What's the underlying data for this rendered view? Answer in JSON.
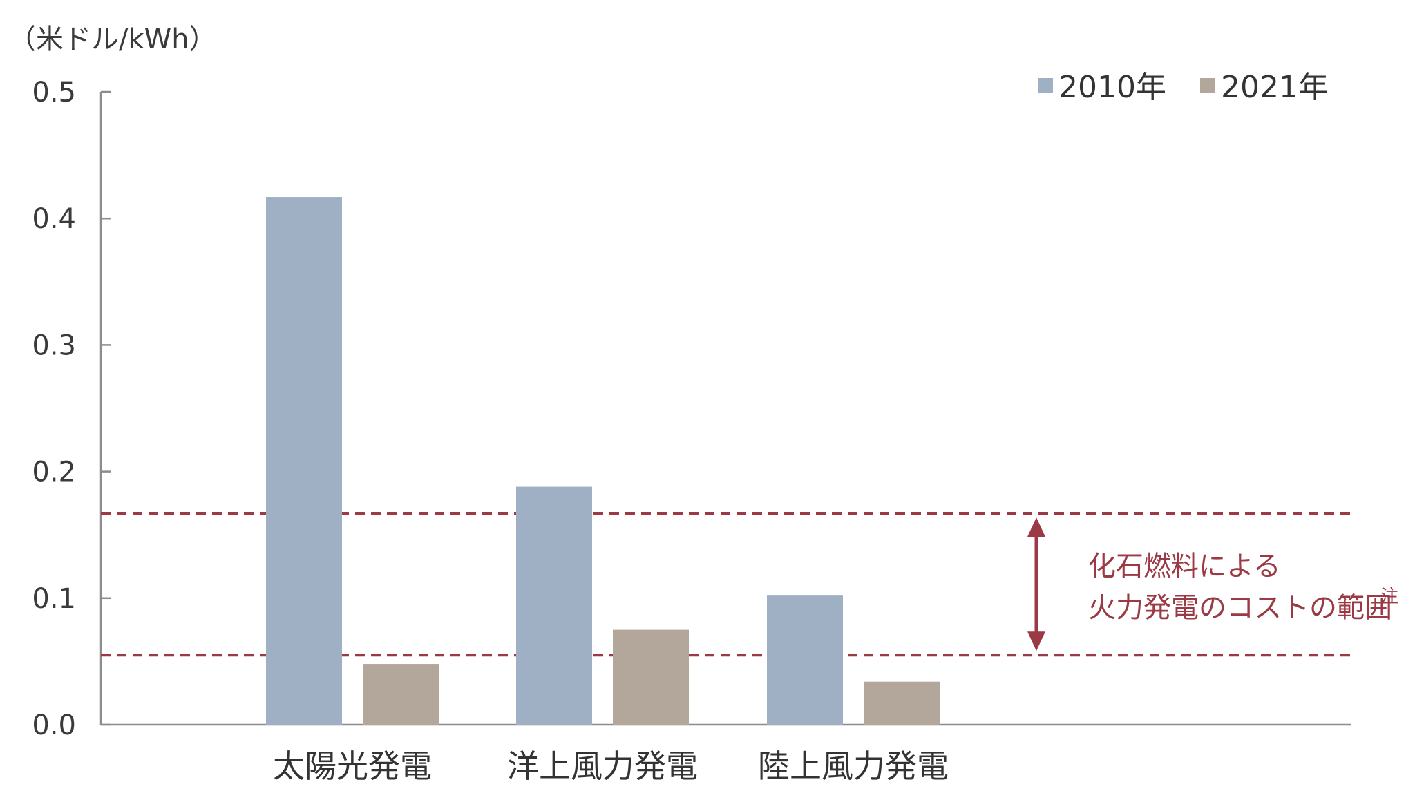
{
  "chart_data": {
    "type": "bar",
    "unit_label": "（米ドル/kWh）",
    "categories": [
      "太陽光発電",
      "洋上風力発電",
      "陸上風力発電"
    ],
    "series": [
      {
        "name": "2010年",
        "color": "#9fafc4",
        "values": [
          0.417,
          0.188,
          0.102
        ]
      },
      {
        "name": "2021年",
        "color": "#b3a79c",
        "values": [
          0.048,
          0.075,
          0.034
        ]
      }
    ],
    "ylim": [
      0,
      0.5
    ],
    "yticks": [
      "0.0",
      "0.1",
      "0.2",
      "0.3",
      "0.4",
      "0.5"
    ],
    "ytick_values": [
      0,
      0.1,
      0.2,
      0.3,
      0.4,
      0.5
    ],
    "grid": false,
    "legend_position": "top-right",
    "reference_range": {
      "lower": 0.055,
      "upper": 0.167,
      "color": "#9b3a45",
      "label_lines": [
        "化石燃料による",
        "火力発電のコストの範囲"
      ],
      "label_note": "注"
    }
  }
}
